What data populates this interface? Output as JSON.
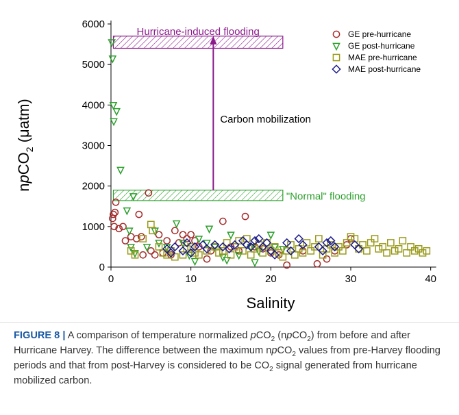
{
  "chart_data": {
    "type": "scatter",
    "y_label": [
      "n",
      "p",
      "CO",
      "2",
      " (",
      "μ",
      "atm)"
    ],
    "x_label": "Salinity",
    "xlim": [
      0,
      42
    ],
    "xticks": [
      0,
      10,
      20,
      30,
      40
    ],
    "ylim": [
      0,
      6000
    ],
    "yticks": [
      0,
      1000,
      2000,
      3000,
      4000,
      5000,
      6000
    ],
    "legend": "upper right",
    "series": [
      {
        "name": "GE pre-hurricane",
        "color": "#a52a2a",
        "marker": "circle",
        "x": [
          0.2,
          0.3,
          0.5,
          0.4,
          0.6,
          1,
          1.5,
          1.8,
          2.5,
          3.2,
          3.5,
          3.8,
          4,
          4.7,
          5,
          5.5,
          6,
          6.5,
          7,
          7.5,
          8,
          8.5,
          9,
          9.5,
          10,
          10.5,
          11,
          12,
          12.5,
          14,
          15,
          16,
          16.8,
          18,
          19,
          20,
          21,
          22,
          24,
          25.8,
          27,
          28,
          29.5,
          30
        ],
        "values": [
          1200,
          1300,
          1350,
          1000,
          1600,
          950,
          1000,
          650,
          750,
          700,
          1300,
          750,
          300,
          1830,
          400,
          300,
          800,
          350,
          650,
          300,
          900,
          600,
          800,
          700,
          800,
          650,
          500,
          200,
          400,
          1130,
          500,
          400,
          1250,
          500,
          450,
          350,
          300,
          50,
          400,
          80,
          200,
          400,
          550,
          700
        ]
      },
      {
        "name": "GE post-hurricane",
        "color": "#2ca02c",
        "marker": "triangle-down",
        "x": [
          0.1,
          0.2,
          0.3,
          0.35,
          0.7,
          1.2,
          2.8,
          2,
          2.3,
          2.5,
          3,
          4.5,
          5.5,
          6,
          7,
          8.2,
          9,
          9.8,
          10.5,
          11,
          12,
          12.3,
          13,
          14,
          14.5,
          15,
          16,
          17.5,
          18,
          18.5,
          20,
          20.5,
          21.5
        ],
        "values": [
          5550,
          5150,
          4000,
          3600,
          3850,
          2400,
          1750,
          1400,
          900,
          500,
          350,
          500,
          900,
          600,
          500,
          1080,
          600,
          300,
          150,
          700,
          600,
          950,
          500,
          250,
          180,
          800,
          300,
          500,
          120,
          400,
          800,
          500,
          450
        ]
      },
      {
        "name": "MAE pre-hurricane",
        "color": "#9a9a1a",
        "marker": "square",
        "x": [
          2.5,
          3,
          4,
          5,
          5.2,
          6,
          6.5,
          7,
          7.5,
          8,
          9,
          9.5,
          10,
          10.5,
          11,
          12,
          13,
          13.5,
          14,
          14.5,
          15,
          15.5,
          16,
          16.5,
          17,
          17.5,
          18,
          18.5,
          19,
          19.5,
          20,
          20.5,
          21,
          21.5,
          22,
          22.5,
          23,
          23.5,
          24,
          24.5,
          25,
          25.5,
          26,
          26.5,
          27,
          27.5,
          28,
          28.5,
          29,
          29.5,
          30,
          30.5,
          31,
          31.5,
          32,
          32.5,
          33,
          33.5,
          34,
          34.5,
          35,
          35.5,
          36,
          36.5,
          37,
          37.5,
          38,
          38.5,
          39,
          39.5
        ],
        "values": [
          400,
          300,
          700,
          1050,
          900,
          500,
          350,
          300,
          400,
          250,
          300,
          450,
          500,
          350,
          300,
          400,
          500,
          350,
          400,
          600,
          300,
          500,
          650,
          400,
          700,
          300,
          450,
          550,
          350,
          600,
          400,
          500,
          350,
          250,
          400,
          550,
          300,
          450,
          350,
          600,
          400,
          500,
          700,
          300,
          450,
          550,
          350,
          500,
          400,
          600,
          750,
          700,
          450,
          550,
          400,
          600,
          700,
          450,
          500,
          350,
          600,
          400,
          450,
          650,
          350,
          500,
          400,
          450,
          350,
          400
        ]
      },
      {
        "name": "MAE post-hurricane",
        "color": "#1a1a8c",
        "marker": "diamond",
        "x": [
          7,
          7.5,
          8,
          9,
          9.5,
          10,
          10.5,
          11.5,
          12,
          13,
          14,
          14.8,
          15.5,
          16.5,
          17,
          17.5,
          18,
          18.5,
          19,
          19.5,
          20,
          20.5,
          22,
          22.5,
          23.5,
          24,
          26,
          26.5,
          27,
          27.5,
          28,
          30.5,
          31
        ],
        "values": [
          450,
          350,
          500,
          400,
          600,
          350,
          500,
          550,
          450,
          550,
          500,
          450,
          550,
          650,
          550,
          500,
          650,
          700,
          500,
          600,
          400,
          300,
          600,
          400,
          700,
          550,
          500,
          400,
          600,
          650,
          500,
          550,
          450
        ]
      }
    ],
    "regions": [
      {
        "text": "Hurricane-induced flooding",
        "color": "#8b1a8b",
        "x": [
          0.3,
          21.5
        ],
        "y": [
          5400,
          5700
        ]
      },
      {
        "text": "\"Normal\" flooding",
        "color": "#2ca02c",
        "x": [
          0.3,
          21.5
        ],
        "y": [
          1640,
          1900
        ]
      }
    ],
    "arrow": {
      "text": "Carbon mobilization",
      "color": "#8b1a8b",
      "x": 12.8,
      "y": [
        1900,
        5700
      ]
    }
  },
  "caption": [
    "FIGURE 8 |",
    " A comparison of temperature normalized ",
    "p",
    "CO",
    "2",
    " (n",
    "p",
    "CO",
    "2",
    ") from before and after Hurricane Harvey. The difference between the maximum n",
    "p",
    "CO",
    "2",
    " values from pre-Harvey flooding periods and that from post-Harvey is considered to be CO",
    "2",
    " signal generated from hurricane mobilized carbon."
  ]
}
